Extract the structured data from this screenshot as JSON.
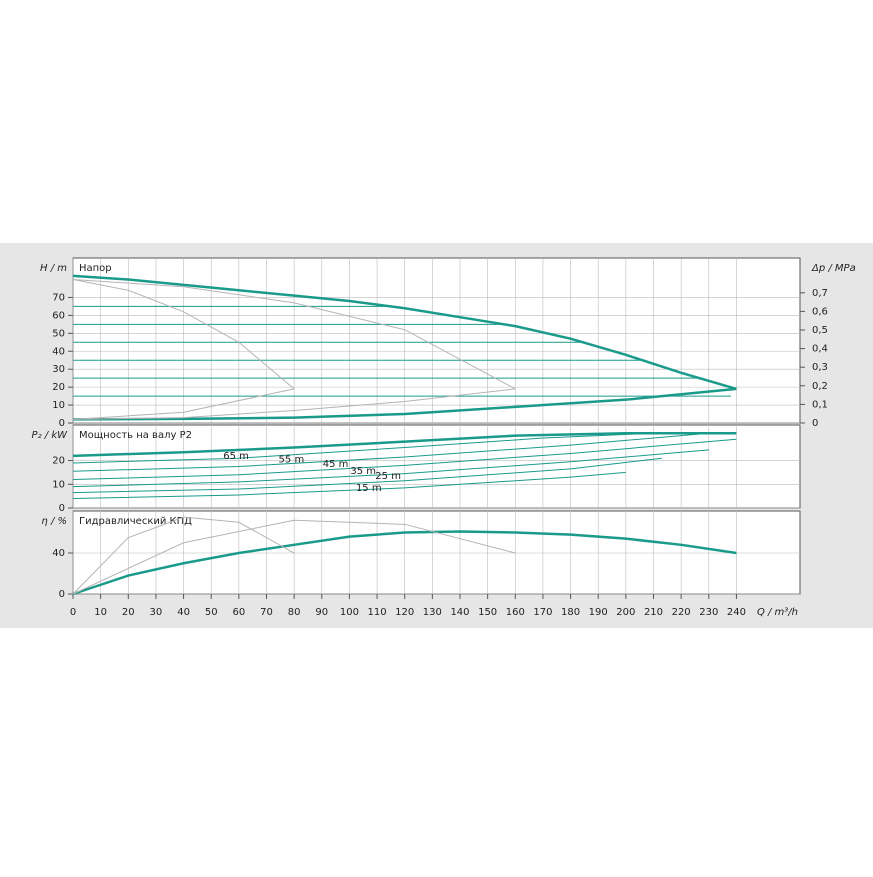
{
  "chart_data": [
    {
      "type": "line",
      "ylabel": "H / m",
      "title": "Напор",
      "y2label": "Δp / MPa",
      "xlim": [
        0,
        263
      ],
      "ylim": [
        0,
        92
      ],
      "yticks": [
        0,
        10,
        20,
        30,
        40,
        50,
        60,
        70
      ],
      "y2lim": [
        0,
        0.887
      ],
      "y2ticks": [
        {
          "value": 0,
          "label": "0"
        },
        {
          "value": 0.1,
          "label": "0,1"
        },
        {
          "value": 0.2,
          "label": "0,2"
        },
        {
          "value": 0.3,
          "label": "0,3"
        },
        {
          "value": 0.4,
          "label": "0,4"
        },
        {
          "value": 0.5,
          "label": "0,5"
        },
        {
          "value": 0.6,
          "label": "0,6"
        },
        {
          "value": 0.7,
          "label": "0,7"
        }
      ],
      "grid": true,
      "series": [
        {
          "color": "#1a9a8a",
          "width": 2.5,
          "x": [
            0,
            20,
            40,
            60,
            80,
            100,
            120,
            140,
            160,
            180,
            200,
            220,
            240
          ],
          "values": [
            82,
            80,
            77,
            74,
            71,
            68,
            64,
            59,
            54,
            47,
            38,
            28,
            19
          ]
        },
        {
          "color": "#1a9a8a",
          "width": 2.5,
          "x": [
            0,
            40,
            80,
            120,
            160,
            200,
            240
          ],
          "values": [
            2,
            2.3,
            3,
            5,
            9,
            13,
            19
          ]
        },
        {
          "color": "#1a9a8a",
          "width": 1,
          "x": [
            0,
            115
          ],
          "values": [
            65,
            65
          ]
        },
        {
          "color": "#1a9a8a",
          "width": 1,
          "x": [
            0,
            156
          ],
          "values": [
            55,
            55
          ]
        },
        {
          "color": "#1a9a8a",
          "width": 1,
          "x": [
            0,
            185
          ],
          "values": [
            45,
            45
          ]
        },
        {
          "color": "#1a9a8a",
          "width": 1,
          "x": [
            0,
            207
          ],
          "values": [
            35,
            35
          ]
        },
        {
          "color": "#1a9a8a",
          "width": 1,
          "x": [
            0,
            226
          ],
          "values": [
            25,
            25
          ]
        },
        {
          "color": "#1a9a8a",
          "width": 1,
          "x": [
            0,
            238
          ],
          "values": [
            15,
            15
          ]
        },
        {
          "color": "#b4b4b4",
          "width": 1,
          "x": [
            0,
            20,
            40,
            60,
            80
          ],
          "values": [
            80,
            74,
            62,
            45,
            19
          ]
        },
        {
          "color": "#b4b4b4",
          "width": 1,
          "x": [
            0,
            40,
            80,
            120,
            160
          ],
          "values": [
            80,
            76,
            67,
            52,
            19
          ]
        },
        {
          "color": "#b4b4b4",
          "width": 1,
          "x": [
            0,
            40,
            80
          ],
          "values": [
            2,
            6,
            19
          ]
        },
        {
          "color": "#b4b4b4",
          "width": 1,
          "x": [
            0,
            40,
            80,
            120,
            160
          ],
          "values": [
            2,
            3,
            7,
            12,
            19
          ]
        }
      ]
    },
    {
      "type": "line",
      "ylabel": "P₂ / kW",
      "title": "Мощность на валу P2",
      "xlim": [
        0,
        263
      ],
      "ylim": [
        0,
        35
      ],
      "yticks": [
        0,
        10,
        20
      ],
      "grid": true,
      "series": [
        {
          "color": "#1a9a8a",
          "width": 2.5,
          "x": [
            0,
            40,
            80,
            120,
            160,
            200,
            240
          ],
          "values": [
            22,
            23.5,
            25.5,
            28,
            30.5,
            31.5,
            31.5
          ]
        },
        {
          "color": "#1a9a8a",
          "width": 1,
          "x": [
            0,
            60,
            120,
            170,
            210
          ],
          "values": [
            19,
            21,
            25.5,
            29.5,
            31.5
          ]
        },
        {
          "color": "#1a9a8a",
          "width": 1,
          "x": [
            0,
            60,
            120,
            180,
            230
          ],
          "values": [
            15.5,
            17.5,
            21.5,
            26.5,
            31.5
          ]
        },
        {
          "color": "#1a9a8a",
          "width": 1,
          "x": [
            0,
            60,
            120,
            180,
            240
          ],
          "values": [
            12,
            14,
            18,
            23,
            29
          ]
        },
        {
          "color": "#1a9a8a",
          "width": 1,
          "x": [
            0,
            60,
            120,
            180,
            230
          ],
          "values": [
            9,
            11,
            14.5,
            19.5,
            24.5
          ]
        },
        {
          "color": "#1a9a8a",
          "width": 1,
          "x": [
            0,
            60,
            120,
            180,
            213
          ],
          "values": [
            6.5,
            8,
            11.5,
            16.5,
            21
          ]
        },
        {
          "color": "#1a9a8a",
          "width": 1,
          "x": [
            0,
            60,
            120,
            180,
            200
          ],
          "values": [
            4,
            5.5,
            8.5,
            13,
            15
          ]
        }
      ],
      "annotations": [
        {
          "text": "65 m",
          "x": 59,
          "y": 22
        },
        {
          "text": "55 m",
          "x": 79,
          "y": 20.5
        },
        {
          "text": "45 m",
          "x": 95,
          "y": 18.5
        },
        {
          "text": "35 m",
          "x": 105,
          "y": 15.5
        },
        {
          "text": "25 m",
          "x": 114,
          "y": 13.5
        },
        {
          "text": "15 m",
          "x": 107,
          "y": 8.5
        }
      ]
    },
    {
      "type": "line",
      "ylabel": "η / %",
      "title": "Гидравлический КПД",
      "xlabel": "Q / m³/h",
      "xlim": [
        0,
        263
      ],
      "ylim": [
        0,
        81
      ],
      "yticks": [
        0,
        40
      ],
      "xticks": [
        0,
        10,
        20,
        30,
        40,
        50,
        60,
        70,
        80,
        90,
        100,
        110,
        120,
        130,
        140,
        150,
        160,
        170,
        180,
        190,
        200,
        210,
        220,
        230,
        240
      ],
      "grid": true,
      "series": [
        {
          "color": "#1a9a8a",
          "width": 2.5,
          "x": [
            0,
            20,
            40,
            60,
            80,
            100,
            120,
            140,
            160,
            180,
            200,
            220,
            240
          ],
          "values": [
            0,
            18,
            30,
            40,
            48,
            56,
            60,
            61,
            60,
            58,
            54,
            48,
            40
          ]
        },
        {
          "color": "#b4b4b4",
          "width": 1,
          "x": [
            0,
            20,
            40,
            60,
            80
          ],
          "values": [
            0,
            55,
            75,
            70,
            40
          ]
        },
        {
          "color": "#b4b4b4",
          "width": 1,
          "x": [
            0,
            40,
            80,
            120,
            160
          ],
          "values": [
            0,
            50,
            72,
            68,
            40
          ]
        }
      ]
    }
  ]
}
